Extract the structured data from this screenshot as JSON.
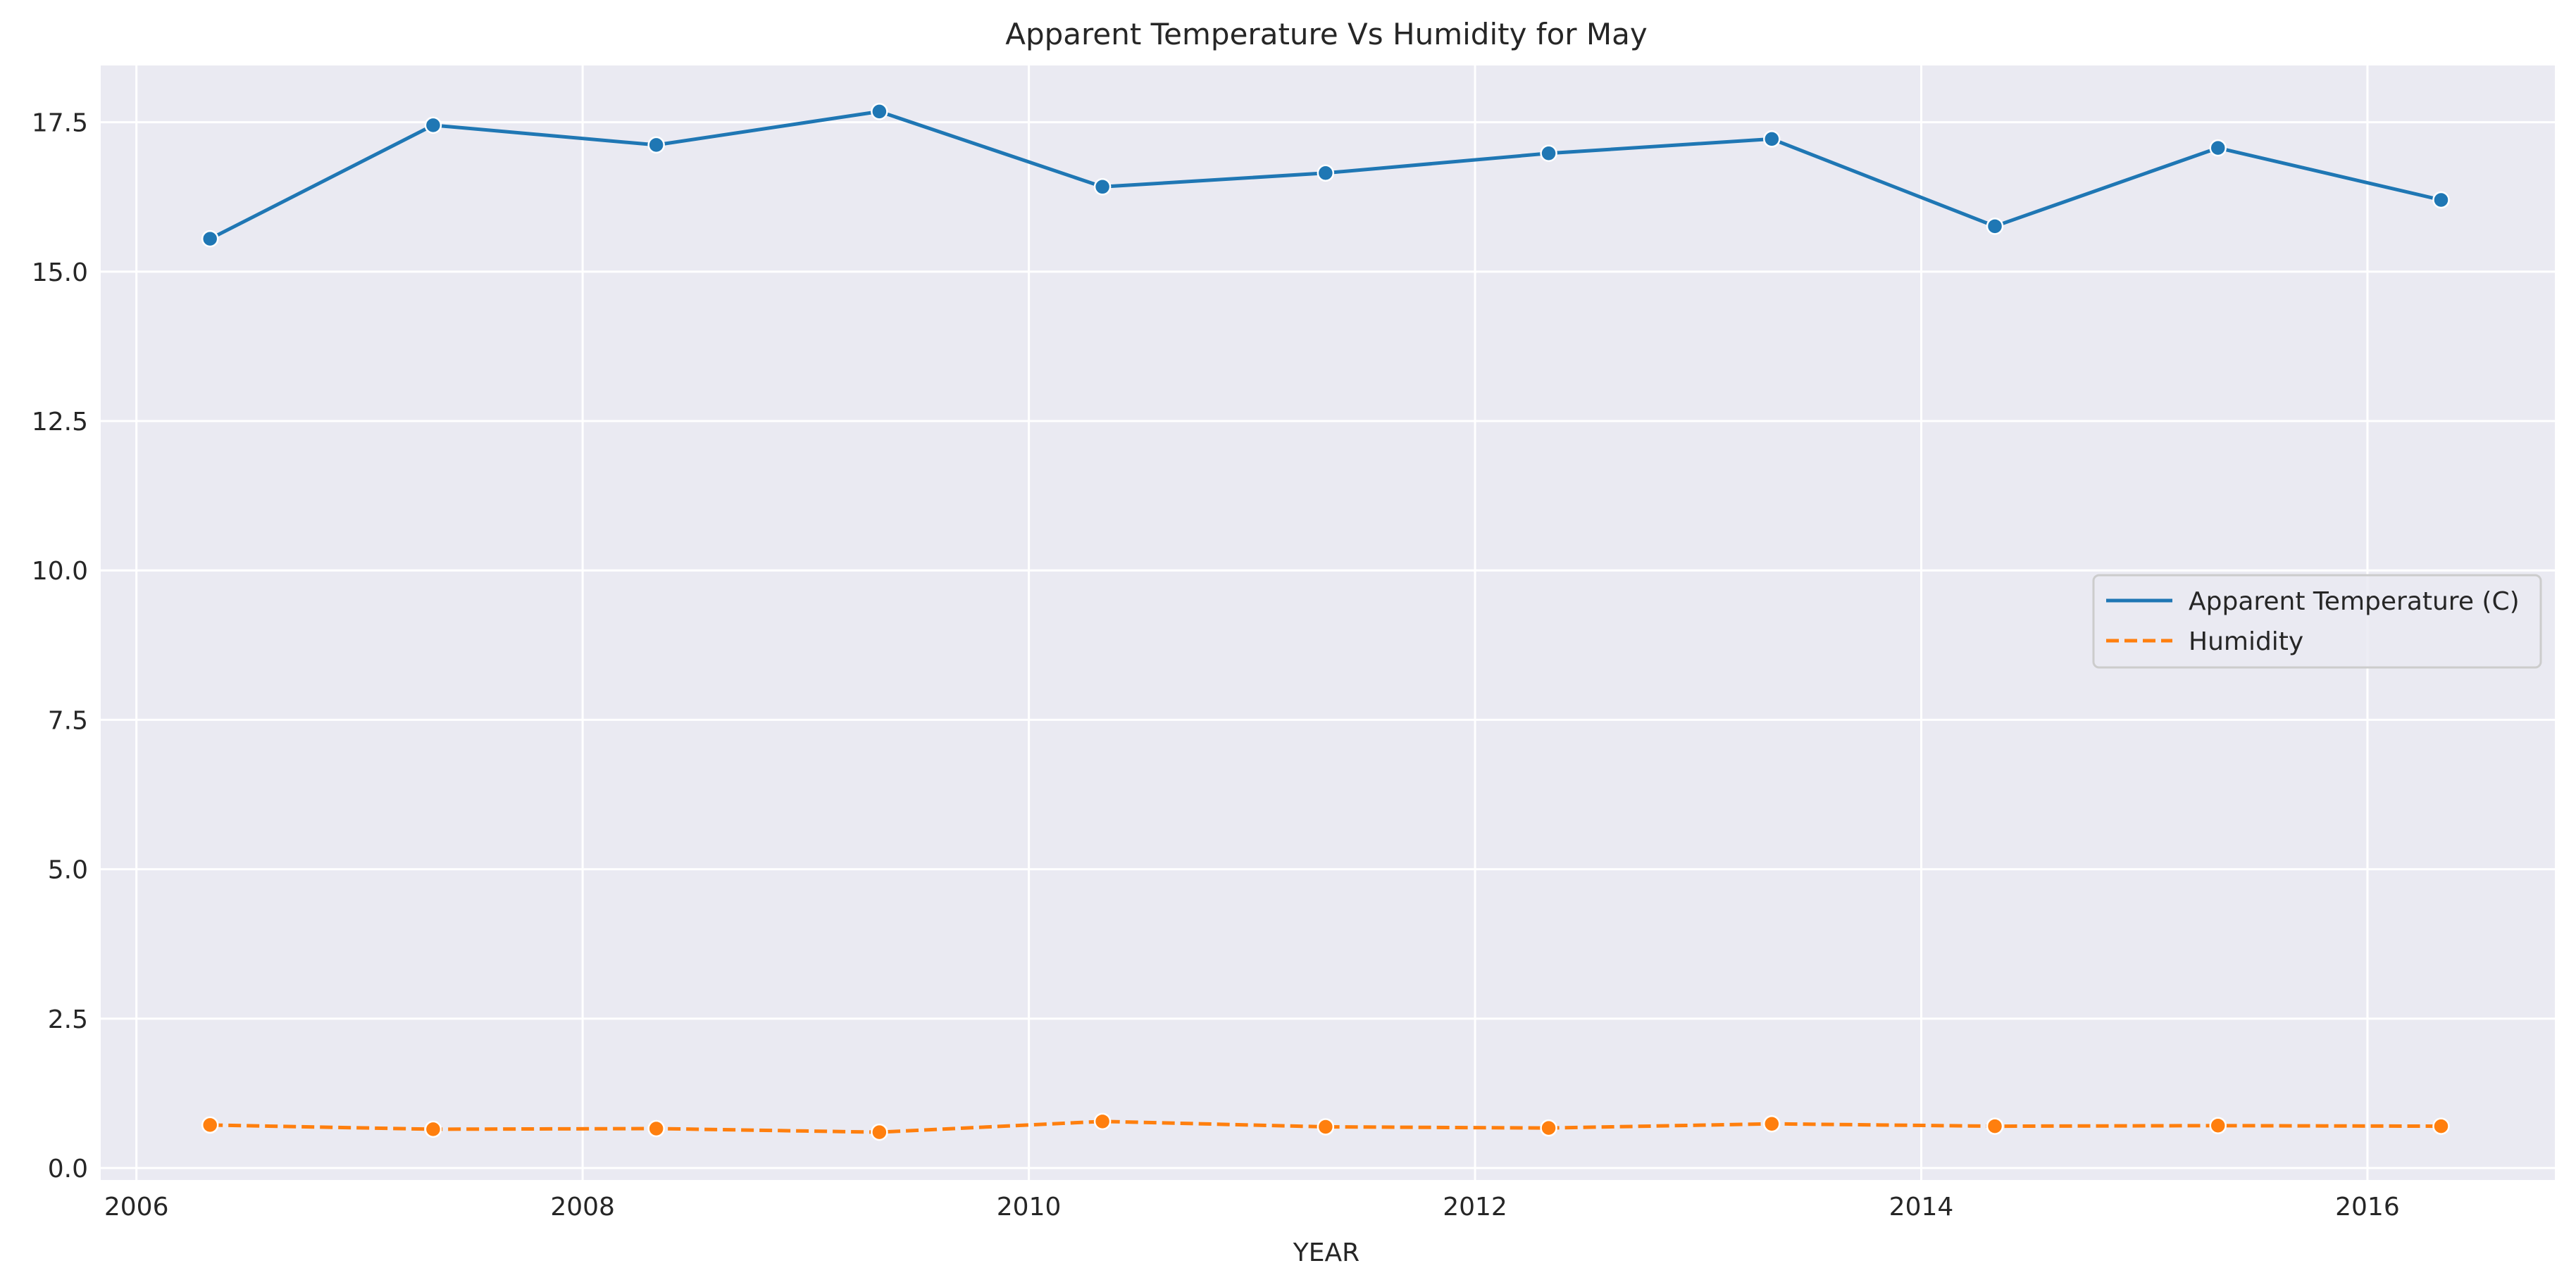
{
  "chart_data": {
    "type": "line",
    "title": "Apparent Temperature Vs Humidity for May",
    "xlabel": "YEAR",
    "ylabel": "",
    "xlim": [
      2005.84,
      2016.84
    ],
    "ylim": [
      -0.2,
      18.45
    ],
    "x_ticks": [
      2006,
      2008,
      2010,
      2012,
      2014,
      2016
    ],
    "x_tick_labels": [
      "2006",
      "2008",
      "2010",
      "2012",
      "2014",
      "2016"
    ],
    "y_ticks": [
      0,
      2.5,
      5,
      7.5,
      10,
      12.5,
      15,
      17.5
    ],
    "y_tick_labels": [
      "0.0",
      "2.5",
      "5.0",
      "7.5",
      "10.0",
      "12.5",
      "15.0",
      "17.5"
    ],
    "x": [
      2006.33,
      2007.33,
      2008.33,
      2009.33,
      2010.33,
      2011.33,
      2012.33,
      2013.33,
      2014.33,
      2015.33,
      2016.33
    ],
    "series": [
      {
        "name": "Apparent Temperature (C)",
        "color": "#1f77b4",
        "dash": "solid",
        "values": [
          15.55,
          17.45,
          17.12,
          17.68,
          16.42,
          16.65,
          16.98,
          17.22,
          15.76,
          17.07,
          16.2
        ]
      },
      {
        "name": "Humidity",
        "color": "#ff7f0e",
        "dash": "dashed",
        "values": [
          0.72,
          0.65,
          0.66,
          0.6,
          0.78,
          0.69,
          0.67,
          0.74,
          0.7,
          0.71,
          0.7
        ]
      }
    ],
    "grid": true,
    "legend_position": "center-right",
    "background": "#eaeaf2"
  }
}
